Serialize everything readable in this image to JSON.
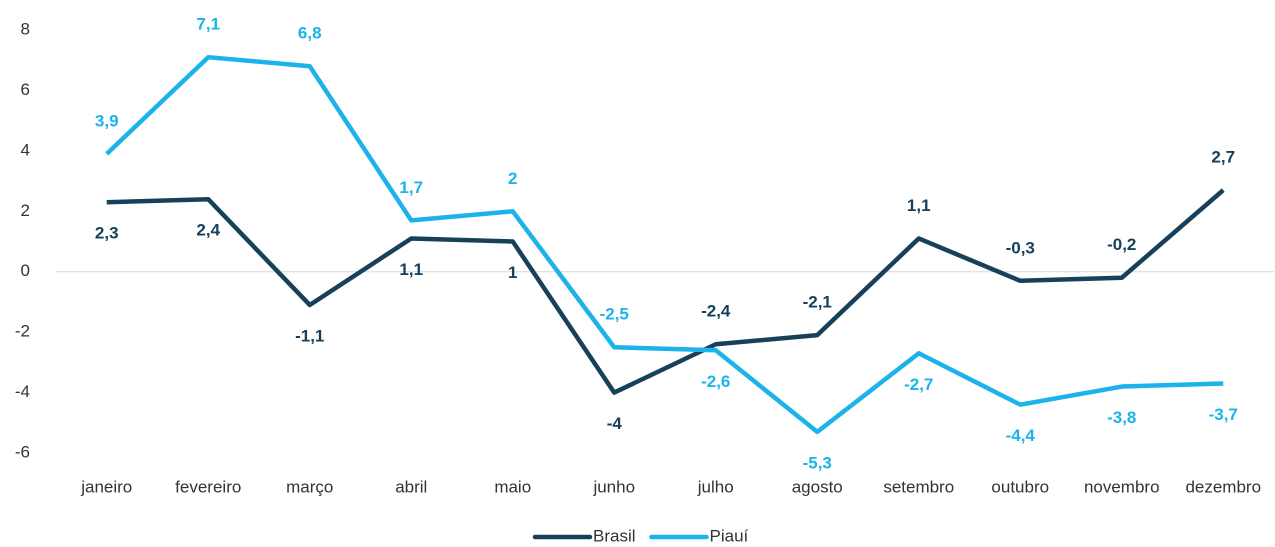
{
  "chart_data": {
    "type": "line",
    "categories": [
      "janeiro",
      "fevereiro",
      "março",
      "abril",
      "maio",
      "junho",
      "julho",
      "agosto",
      "setembro",
      "outubro",
      "novembro",
      "dezembro"
    ],
    "series": [
      {
        "name": "Brasil",
        "color": "#17415a",
        "values": [
          2.3,
          2.4,
          -1.1,
          1.1,
          1,
          -4,
          -2.4,
          -2.1,
          1.1,
          -0.3,
          -0.2,
          2.7
        ],
        "value_labels": [
          "2,3",
          "2,4",
          "-1,1",
          "1,1",
          "1",
          "-4",
          "-2,4",
          "-2,1",
          "1,1",
          "-0,3",
          "-0,2",
          "2,7"
        ]
      },
      {
        "name": "Piauí",
        "color": "#1cb3ea",
        "values": [
          3.9,
          7.1,
          6.8,
          1.7,
          2,
          -2.5,
          -2.6,
          -5.3,
          -2.7,
          -4.4,
          -3.8,
          -3.7
        ],
        "value_labels": [
          "3,9",
          "7,1",
          "6,8",
          "1,7",
          "2",
          "-2,5",
          "-2,6",
          "-5,3",
          "-2,7",
          "-4,4",
          "-3,8",
          "-3,7"
        ]
      }
    ],
    "ylim": [
      -6,
      8
    ],
    "yticks": [
      -6,
      -4,
      -2,
      0,
      2,
      4,
      6,
      8
    ],
    "legend": "bottom"
  }
}
